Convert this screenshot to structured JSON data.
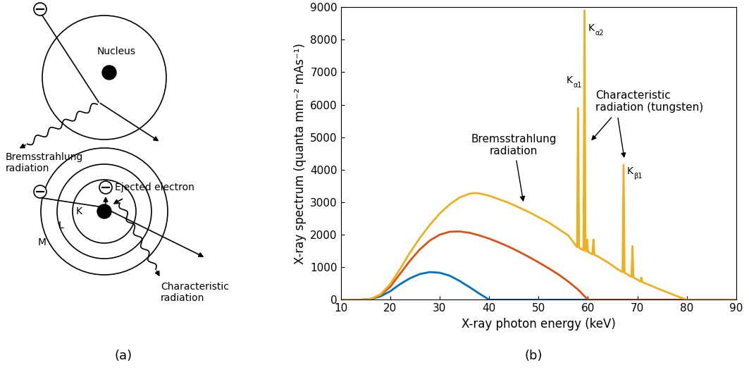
{
  "diagram": {
    "bremsstrahlung": {
      "nucleus_label": "Nucleus",
      "radiation_label": "Bremsstrahlung\nradiation"
    },
    "characteristic": {
      "shells": [
        "K",
        "L",
        "M"
      ],
      "ejected_label": "Ejected electron",
      "radiation_label": "Characteristic\nradiation"
    },
    "caption": "(a)"
  },
  "chart_data": {
    "type": "line",
    "caption": "(b)",
    "x_label": "X-ray photon energy (keV)",
    "y_label": "X-ray spectrum (quanta mm⁻² mAs⁻¹)",
    "xlim": [
      10,
      90
    ],
    "xticks": [
      10,
      20,
      30,
      40,
      50,
      60,
      70,
      80,
      90
    ],
    "ylim": [
      0,
      9000
    ],
    "yticks": [
      0,
      1000,
      2000,
      3000,
      4000,
      5000,
      6000,
      7000,
      8000,
      9000
    ],
    "grid": false,
    "annotations": {
      "bremsstrahlung": "Bremsstrahlung\nradiation",
      "characteristic": "Characteristic\nradiation (tungsten)",
      "peaks": [
        {
          "main": "K",
          "sub": "α1"
        },
        {
          "main": "K",
          "sub": "α2"
        },
        {
          "main": "K",
          "sub": "β1"
        }
      ]
    },
    "series": [
      {
        "color": "#0072bd",
        "x": [
          10,
          14,
          16,
          18,
          20,
          22,
          24,
          26,
          28,
          30,
          32,
          34,
          36,
          38,
          40,
          90
        ],
        "values": [
          0,
          0,
          20,
          100,
          260,
          480,
          660,
          790,
          850,
          830,
          740,
          580,
          390,
          190,
          0,
          0
        ]
      },
      {
        "color": "#d95319",
        "x": [
          10,
          14,
          16,
          18,
          20,
          22,
          24,
          26,
          28,
          30,
          32,
          34,
          36,
          38,
          40,
          42,
          44,
          46,
          48,
          50,
          52,
          54,
          56,
          58,
          60,
          90
        ],
        "values": [
          0,
          0,
          20,
          130,
          400,
          800,
          1200,
          1550,
          1820,
          2000,
          2090,
          2100,
          2060,
          1980,
          1880,
          1760,
          1630,
          1480,
          1320,
          1150,
          970,
          780,
          560,
          310,
          0,
          0
        ]
      },
      {
        "color": "#edb120",
        "x": [
          10,
          14,
          16,
          18,
          20,
          22,
          24,
          26,
          28,
          30,
          32,
          34,
          36,
          37,
          38,
          40,
          44,
          48,
          52,
          56,
          57.8,
          58.0,
          58.2,
          59.1,
          59.3,
          59.5,
          59.6,
          59.8,
          60.0,
          60.9,
          61.1,
          61.3,
          62,
          64,
          66,
          67.0,
          67.2,
          67.4,
          68.8,
          69.0,
          69.2,
          70,
          70.6,
          70.8,
          71,
          72,
          74,
          76,
          78,
          80,
          90
        ],
        "values": [
          0,
          0,
          25,
          160,
          480,
          950,
          1450,
          1900,
          2300,
          2650,
          2930,
          3140,
          3260,
          3280,
          3270,
          3200,
          2980,
          2700,
          2380,
          1980,
          1620,
          5900,
          1600,
          1520,
          8900,
          1500,
          1490,
          1850,
          1470,
          1400,
          1850,
          1380,
          1330,
          1150,
          940,
          850,
          4150,
          830,
          700,
          1650,
          680,
          620,
          560,
          680,
          540,
          480,
          350,
          230,
          110,
          0,
          0
        ]
      }
    ]
  }
}
